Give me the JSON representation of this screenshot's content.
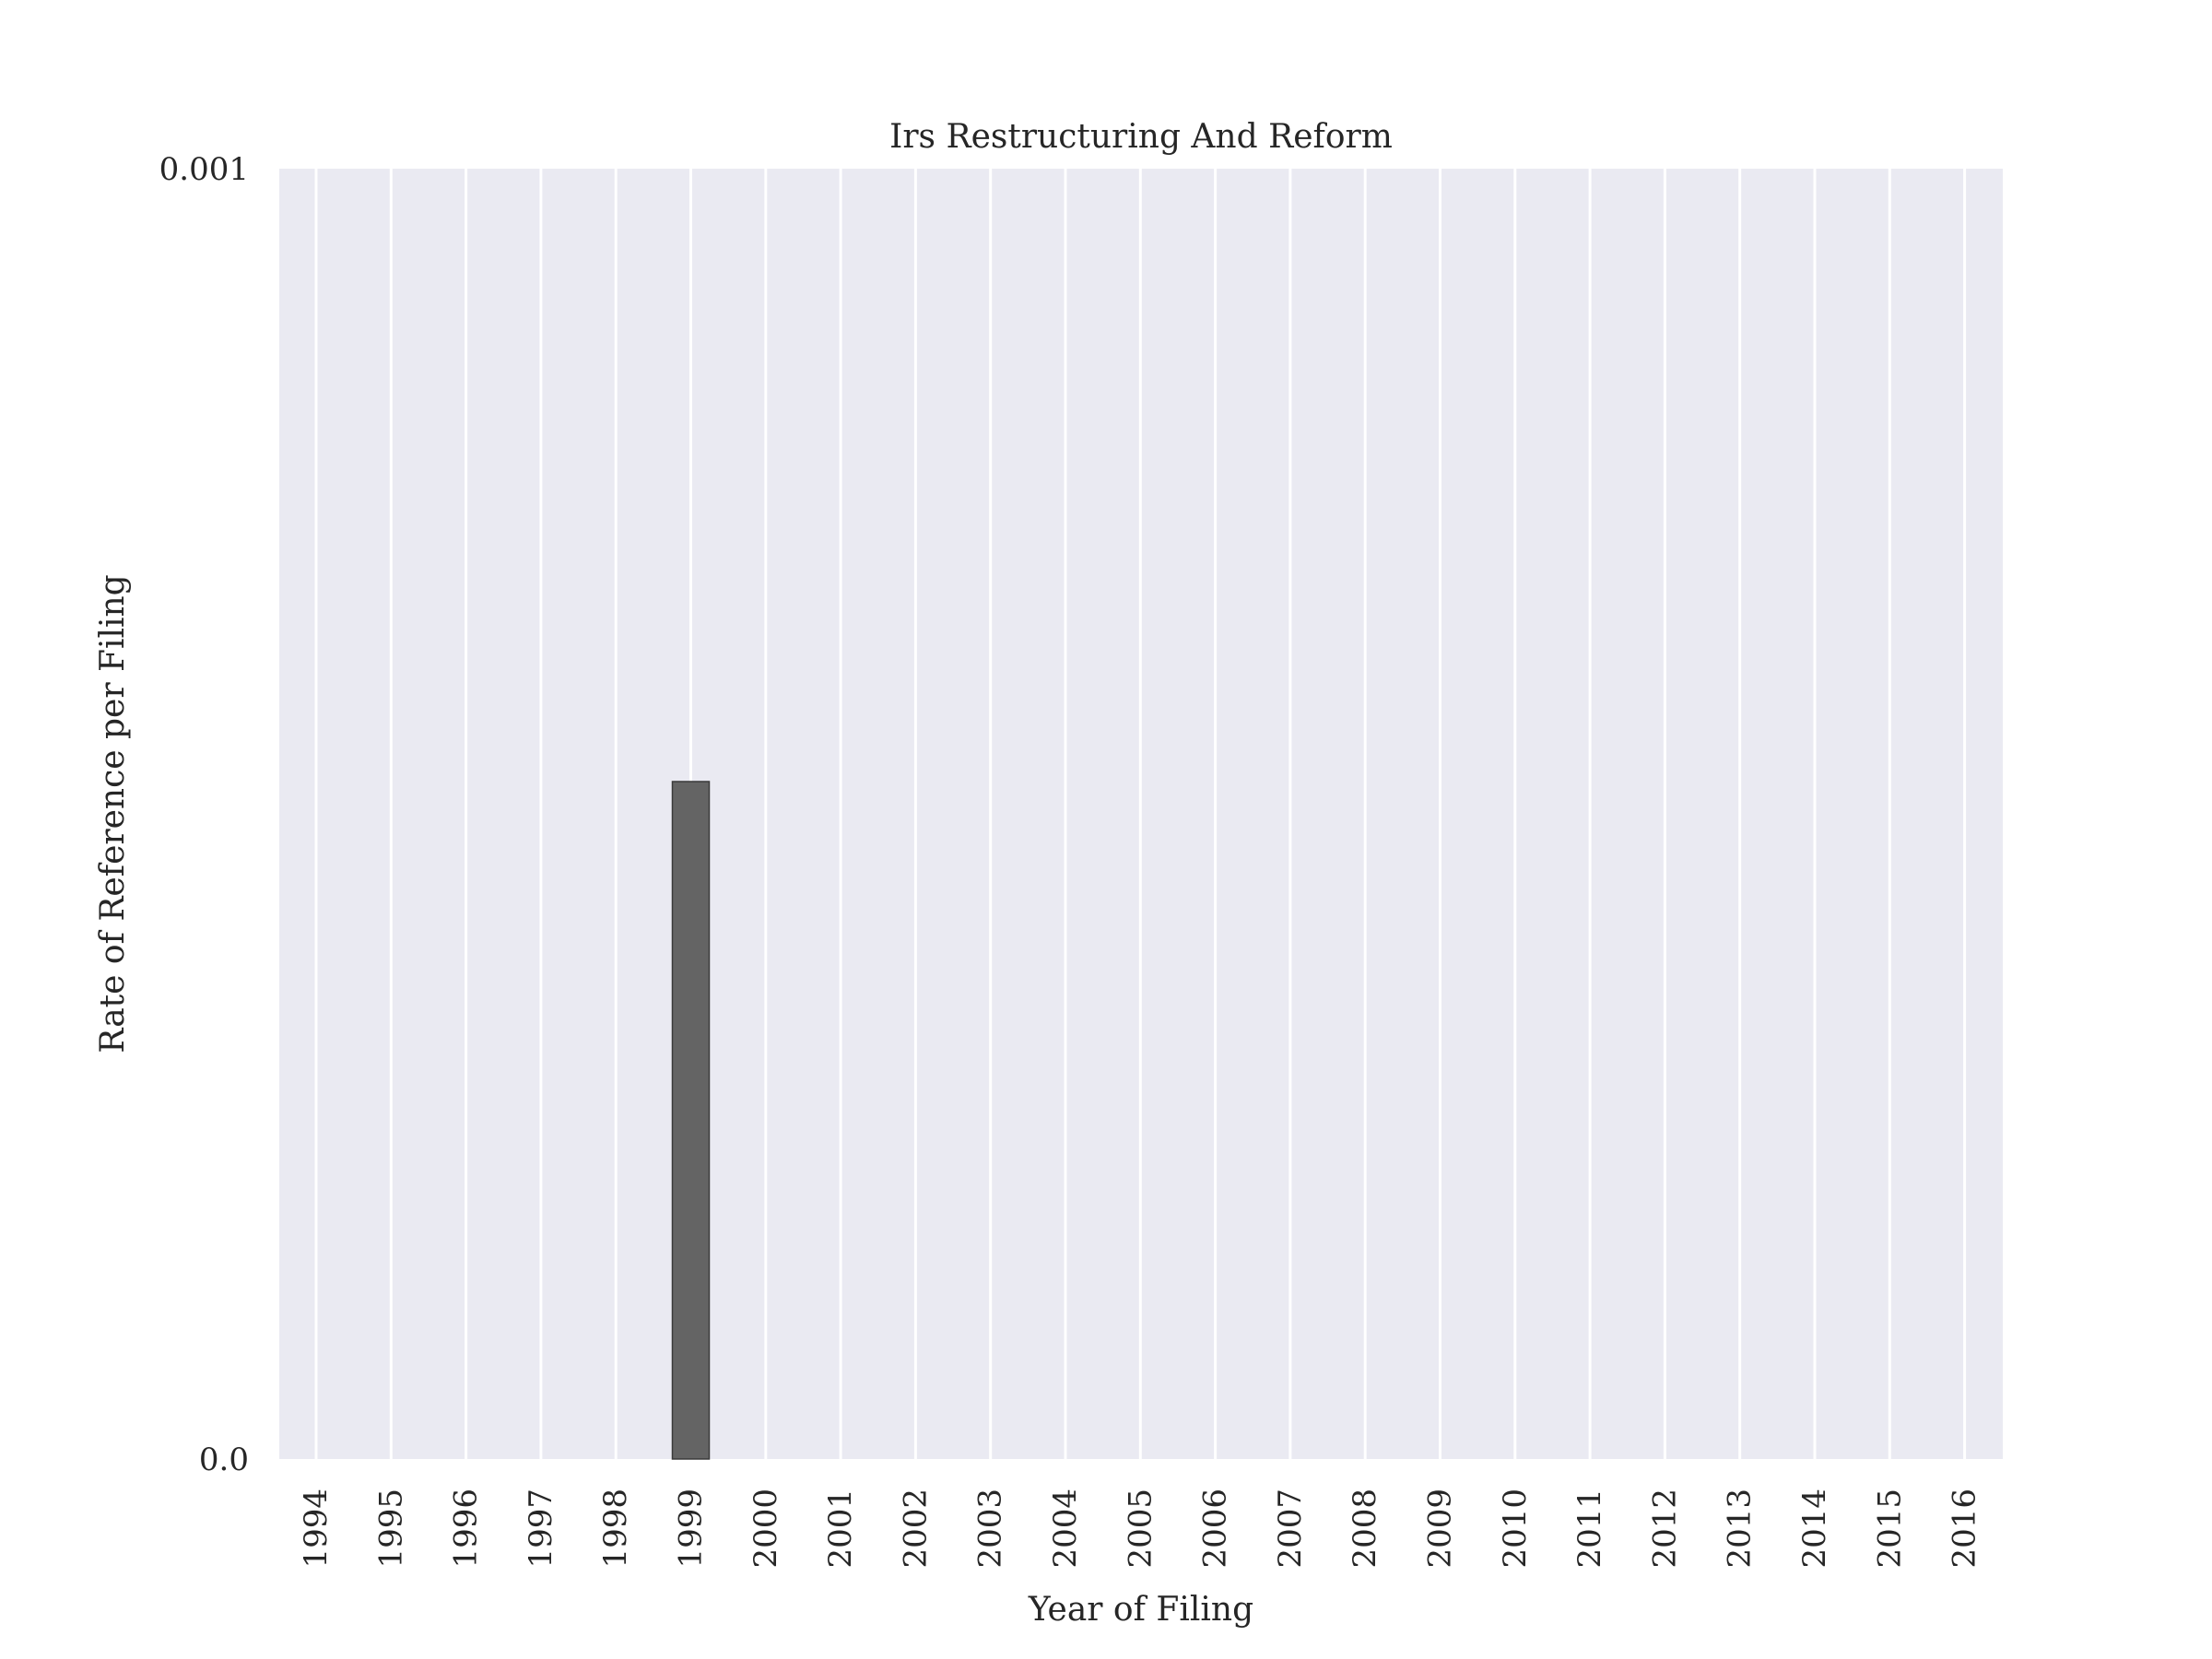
{
  "chart_data": {
    "type": "bar",
    "title": "Irs Restructuring And Reform",
    "xlabel": "Year of Filing",
    "ylabel": "Rate of Reference per Filing",
    "categories": [
      "1994",
      "1995",
      "1996",
      "1997",
      "1998",
      "1999",
      "2000",
      "2001",
      "2002",
      "2003",
      "2004",
      "2005",
      "2006",
      "2007",
      "2008",
      "2009",
      "2010",
      "2011",
      "2012",
      "2013",
      "2014",
      "2015",
      "2016"
    ],
    "values": [
      0,
      0,
      0,
      0,
      0,
      0.000525,
      0,
      0,
      0,
      0,
      0,
      0,
      0,
      0,
      0,
      0,
      0,
      0,
      0,
      0,
      0,
      0,
      0
    ],
    "ylim": [
      0,
      0.001
    ],
    "yticks": [
      "0.0",
      "0.001"
    ],
    "grid": true,
    "legend": "none",
    "colors": {
      "plot_background": "#eaeaf2",
      "grid": "#ffffff",
      "bar_fill": "#646464",
      "bar_edge": "#3a3a3a",
      "text": "#262626"
    }
  }
}
